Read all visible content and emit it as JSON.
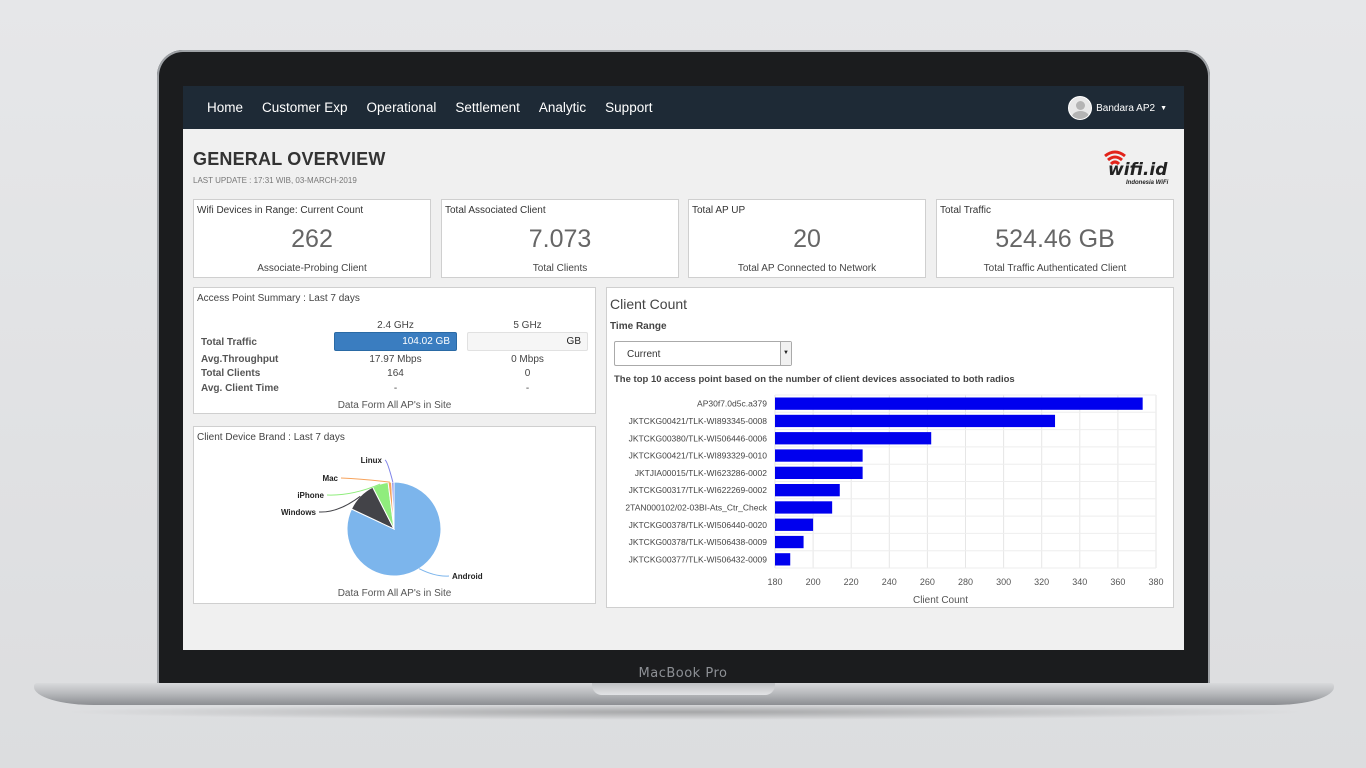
{
  "device": {
    "brand": "MacBook Pro"
  },
  "nav": {
    "items": [
      "Home",
      "Customer Exp",
      "Operational",
      "Settlement",
      "Analytic",
      "Support"
    ],
    "user": "Bandara AP2"
  },
  "header": {
    "title": "GENERAL OVERVIEW",
    "last_update": "LAST UPDATE : 17:31 WIB, 03-MARCH-2019",
    "logo_text": "wifi.id",
    "logo_sub": "Indonesia WiFi"
  },
  "stats": [
    {
      "label": "Wifi Devices in Range: Current Count",
      "value": "262",
      "sub": "Associate-Probing Client"
    },
    {
      "label": "Total Associated Client",
      "value": "7.073",
      "sub": "Total Clients"
    },
    {
      "label": "Total AP UP",
      "value": "20",
      "sub": "Total AP Connected to Network"
    },
    {
      "label": "Total Traffic",
      "value": "524.46 GB",
      "sub": "Total Traffic Authenticated Client"
    }
  ],
  "ap_summary": {
    "title": "Access Point Summary : Last 7 days",
    "col1": "2.4 GHz",
    "col2": "5 GHz",
    "rows": [
      {
        "label": "Total Traffic",
        "v24": "104.02 GB",
        "v5": "GB"
      },
      {
        "label": "Avg.Throughput",
        "v24": "17.97 Mbps",
        "v5": "0 Mbps"
      },
      {
        "label": "Total Clients",
        "v24": "164",
        "v5": "0"
      },
      {
        "label": "Avg. Client Time",
        "v24": "-",
        "v5": "-"
      }
    ],
    "footer": "Data Form All AP's in Site"
  },
  "brand_panel": {
    "title": "Client Device Brand : Last 7 days",
    "footer": "Data Form All AP's in Site",
    "slices": [
      {
        "name": "Android",
        "value": 82,
        "color": "#7cb5ec"
      },
      {
        "name": "Windows",
        "value": 10.5,
        "color": "#434348"
      },
      {
        "name": "iPhone",
        "value": 5.5,
        "color": "#90ed7d"
      },
      {
        "name": "Mac",
        "value": 1.2,
        "color": "#f7a35c"
      },
      {
        "name": "Linux",
        "value": 0.8,
        "color": "#8085e9"
      }
    ]
  },
  "client_count": {
    "title": "Client Count",
    "time_range_label": "Time Range",
    "time_range_value": "Current",
    "description": "The top 10 access point based on the number of client devices associated to both radios",
    "x_label": "Client Count"
  },
  "chart_data": {
    "type": "bar",
    "orientation": "horizontal",
    "categories": [
      "AP30f7.0d5c.a379",
      "JKTCKG00421/TLK-WI893345-0008",
      "JKTCKG00380/TLK-WI506446-0006",
      "JKTCKG00421/TLK-WI893329-0010",
      "JKTJIA00015/TLK-WI623286-0002",
      "JKTCKG00317/TLK-WI622269-0002",
      "2TAN000102/02-03BI-Ats_Ctr_Check",
      "JKTCKG00378/TLK-WI506440-0020",
      "JKTCKG00378/TLK-WI506438-0009",
      "JKTCKG00377/TLK-WI506432-0009"
    ],
    "values": [
      373,
      327,
      262,
      226,
      226,
      214,
      210,
      200,
      195,
      188
    ],
    "xlim": [
      180,
      380
    ],
    "ticks": [
      180,
      200,
      220,
      240,
      260,
      280,
      300,
      320,
      340,
      360,
      380
    ],
    "xlabel": "Client Count",
    "bar_color": "#0000ee",
    "grid": true
  }
}
